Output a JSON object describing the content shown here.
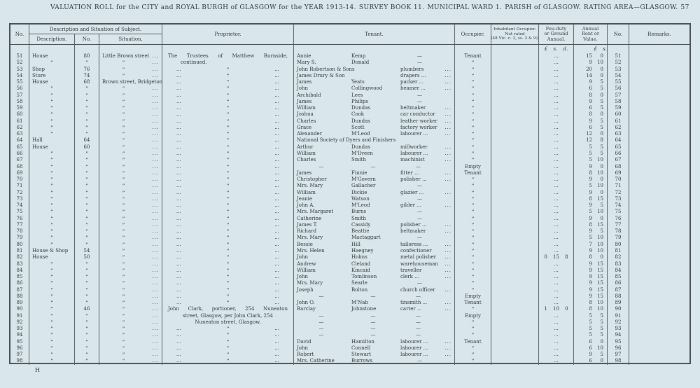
{
  "colors": {
    "page_bg": "#d9e7ec",
    "ink": "#30363b",
    "rule_line": "#4a5056"
  },
  "page": {
    "title_segments": [
      "VALUATION ROLL for the CITY and ROYAL BURGH of GLASGOW for the YEAR 1913-14.",
      "SURVEY BOOK 11.",
      "MUNICIPAL WARD 1.",
      "PARISH of GLASGOW.",
      "RATING AREA—GLASGOW.",
      "57"
    ],
    "footer_mark": "H"
  },
  "table": {
    "headers": {
      "no": "No.",
      "group": "Description and Situation of Subject.",
      "description": "Description.",
      "num": "No.",
      "situation": "Situation.",
      "proprietor": "Proprietor.",
      "tenant": "Tenant.",
      "occupier": "Occupier.",
      "inhabitant_lines": [
        "Inhabitant Occupier.",
        "Not rated",
        "(48 Vic. c. 3, ss. 3 & 9)."
      ],
      "feu_lines": [
        "Feu-duty",
        "or Ground",
        "Annual."
      ],
      "rent_lines": [
        "Annual",
        "Rent or",
        "Value."
      ],
      "no2": "No.",
      "remarks": "Remarks."
    },
    "money_header": {
      "feu": "£ s. d.",
      "rent_pounds": "£",
      "rent_shillings": "s."
    },
    "rows": [
      {
        "n": "51",
        "d": "House",
        "dn": "80",
        "s": "Little Brown street",
        "sd": "...",
        "p": "The Trustees of Matthew Burnside,",
        "ps": "j",
        "t1": "Annie",
        "t2": "Kemp",
        "t3": "—",
        "t4": "",
        "o": "Tenant",
        "f": "...",
        "rl": "15",
        "rs": "0"
      },
      {
        "n": "52",
        "d": "”",
        "dn": "”",
        "s": "”",
        "sd": "...",
        "p": "continued.",
        "ps": "i",
        "t1": "Mary S.",
        "t2": "Donald",
        "t3": "—",
        "t4": "",
        "o": "”",
        "f": "...",
        "rl": "9",
        "rs": "10"
      },
      {
        "n": "53",
        "d": "Shop",
        "dn": "76",
        "s": "”",
        "sd": "...",
        "p": "~",
        "ps": "",
        "t1": "John Robertson & Sons",
        "t2": "",
        "t3": "plumbers",
        "t4": "...",
        "o": "”",
        "f": "...",
        "rl": "20",
        "rs": "0"
      },
      {
        "n": "54",
        "d": "Store",
        "dn": "74",
        "s": "”",
        "sd": "...",
        "p": "~",
        "ps": "",
        "t1": "James Drury & Son",
        "t2": "",
        "t3": "drapers ...",
        "t4": "...",
        "o": "”",
        "f": "...",
        "rl": "14",
        "rs": "0"
      },
      {
        "n": "55",
        "d": "House",
        "dn": "68",
        "s": "Brown street, Bridgeton",
        "sd": "",
        "p": "~",
        "ps": "",
        "t1": "James",
        "t2": "Yeats",
        "t3": "packer ...",
        "t4": "...",
        "o": "”",
        "f": "...",
        "rl": "9",
        "rs": "5"
      },
      {
        "n": "56",
        "d": "”",
        "dn": "”",
        "s": "”",
        "sd": "...",
        "p": "~",
        "ps": "",
        "t1": "John",
        "t2": "Collingwood",
        "t3": "beamer ...",
        "t4": "...",
        "o": "”",
        "f": "...",
        "rl": "6",
        "rs": "5"
      },
      {
        "n": "57",
        "d": "”",
        "dn": "”",
        "s": "”",
        "sd": "...",
        "p": "~",
        "ps": "",
        "t1": "Archibald",
        "t2": "Lees",
        "t3": "—",
        "t4": "",
        "o": "”",
        "f": "...",
        "rl": "8",
        "rs": "0"
      },
      {
        "n": "58",
        "d": "”",
        "dn": "”",
        "s": "”",
        "sd": "...",
        "p": "~",
        "ps": "",
        "t1": "James",
        "t2": "Philips",
        "t3": "—",
        "t4": "",
        "o": "”",
        "f": "...",
        "rl": "9",
        "rs": "5"
      },
      {
        "n": "59",
        "d": "”",
        "dn": "”",
        "s": "”",
        "sd": "...",
        "p": "~",
        "ps": "",
        "t1": "William",
        "t2": "Dundas",
        "t3": "beltmaker",
        "t4": "...",
        "o": "”",
        "f": "...",
        "rl": "6",
        "rs": "5"
      },
      {
        "n": "60",
        "d": "”",
        "dn": "”",
        "s": "”",
        "sd": "...",
        "p": "~",
        "ps": "",
        "t1": "Joshua",
        "t2": "Cook",
        "t3": "car conductor",
        "t4": "...",
        "o": "”",
        "f": "...",
        "rl": "8",
        "rs": "0"
      },
      {
        "n": "61",
        "d": "”",
        "dn": "”",
        "s": "”",
        "sd": "...",
        "p": "~",
        "ps": "",
        "t1": "Charles",
        "t2": "Dundas",
        "t3": "leather worker",
        "t4": "...",
        "o": "”",
        "f": "...",
        "rl": "9",
        "rs": "5"
      },
      {
        "n": "62",
        "d": "”",
        "dn": "”",
        "s": "”",
        "sd": "...",
        "p": "~",
        "ps": "",
        "t1": "Grace",
        "t2": "Scott",
        "t3": "factory worker",
        "t4": "...",
        "o": "”",
        "f": "...",
        "rl": "6",
        "rs": "5"
      },
      {
        "n": "63",
        "d": "”",
        "dn": "”",
        "s": "”",
        "sd": "...",
        "p": "~",
        "ps": "",
        "t1": "Alexander",
        "t2": "M'Leod",
        "t3": "labourer ...",
        "t4": "...",
        "o": "”",
        "f": "...",
        "rl": "12",
        "rs": "0"
      },
      {
        "n": "64",
        "d": "Hall",
        "dn": "64",
        "s": "”",
        "sd": "...",
        "p": "~",
        "ps": "",
        "t1": "National Society of Dyers and Finishers",
        "t2": "",
        "t3": "",
        "t4": "",
        "o": "”",
        "f": "...",
        "rl": "12",
        "rs": "8"
      },
      {
        "n": "65",
        "d": "House",
        "dn": "60",
        "s": "”",
        "sd": "...",
        "p": "~",
        "ps": "",
        "t1": "Arthur",
        "t2": "Dundas",
        "t3": "millworker",
        "t4": "...",
        "o": "”",
        "f": "...",
        "rl": "5",
        "rs": "5"
      },
      {
        "n": "66",
        "d": "”",
        "dn": "”",
        "s": "”",
        "sd": "...",
        "p": "~",
        "ps": "",
        "t1": "William",
        "t2": "M'Ilveen",
        "t3": "labourer ...",
        "t4": "...",
        "o": "”",
        "f": "...",
        "rl": "5",
        "rs": "5"
      },
      {
        "n": "67",
        "d": "”",
        "dn": "”",
        "s": "”",
        "sd": "...",
        "p": "~",
        "ps": "",
        "t1": "Charles",
        "t2": "Smith",
        "t3": "machinist",
        "t4": "...",
        "o": "”",
        "f": "...",
        "rl": "5",
        "rs": "10"
      },
      {
        "n": "68",
        "d": "”",
        "dn": "”",
        "s": "”",
        "sd": "...",
        "p": "~",
        "ps": "",
        "t1": "—",
        "t2": "—",
        "t3": "—",
        "t4": "",
        "o": "Empty",
        "f": "...",
        "rl": "9",
        "rs": "0"
      },
      {
        "n": "69",
        "d": "”",
        "dn": "”",
        "s": "”",
        "sd": "...",
        "p": "~",
        "ps": "",
        "t1": "James",
        "t2": "Finnie",
        "t3": "fitter ...",
        "t4": "...",
        "o": "Tenant",
        "f": "...",
        "rl": "8",
        "rs": "10"
      },
      {
        "n": "70",
        "d": "”",
        "dn": "”",
        "s": "”",
        "sd": "...",
        "p": "~",
        "ps": "",
        "t1": "Christopher",
        "t2": "M'Govern",
        "t3": "polisher ...",
        "t4": "...",
        "o": "”",
        "f": "...",
        "rl": "9",
        "rs": "0"
      },
      {
        "n": "71",
        "d": "”",
        "dn": "”",
        "s": "”",
        "sd": "...",
        "p": "~",
        "ps": "",
        "t1": "Mrs. Mary",
        "t2": "Gallacher",
        "t3": "—",
        "t4": "",
        "o": "”",
        "f": "...",
        "rl": "5",
        "rs": "10"
      },
      {
        "n": "72",
        "d": "”",
        "dn": "”",
        "s": "”",
        "sd": "...",
        "p": "~",
        "ps": "",
        "t1": "William",
        "t2": "Dickie",
        "t3": "glazier ...",
        "t4": "...",
        "o": "”",
        "f": "...",
        "rl": "9",
        "rs": "0"
      },
      {
        "n": "73",
        "d": "”",
        "dn": "”",
        "s": "”",
        "sd": "...",
        "p": "~",
        "ps": "",
        "t1": "Jeanie",
        "t2": "Watson",
        "t3": "—",
        "t4": "",
        "o": "”",
        "f": "...",
        "rl": "8",
        "rs": "15"
      },
      {
        "n": "74",
        "d": "”",
        "dn": "”",
        "s": "”",
        "sd": "...",
        "p": "~",
        "ps": "",
        "t1": "John A.",
        "t2": "M'Leod",
        "t3": "gilder ...",
        "t4": "...",
        "o": "”",
        "f": "...",
        "rl": "9",
        "rs": "5"
      },
      {
        "n": "75",
        "d": "”",
        "dn": "”",
        "s": "”",
        "sd": "...",
        "p": "~",
        "ps": "",
        "t1": "Mrs. Margaret",
        "t2": "Burns",
        "t3": "—",
        "t4": "",
        "o": "”",
        "f": "...",
        "rl": "5",
        "rs": "10"
      },
      {
        "n": "76",
        "d": "”",
        "dn": "”",
        "s": "”",
        "sd": "...",
        "p": "~",
        "ps": "",
        "t1": "Catherine",
        "t2": "Smith",
        "t3": "—",
        "t4": "",
        "o": "”",
        "f": "...",
        "rl": "9",
        "rs": "0"
      },
      {
        "n": "77",
        "d": "”",
        "dn": "”",
        "s": "”",
        "sd": "...",
        "p": "~",
        "ps": "",
        "t1": "James T.",
        "t2": "Cassidy",
        "t3": "polisher ...",
        "t4": "...",
        "o": "”",
        "f": "...",
        "rl": "8",
        "rs": "15"
      },
      {
        "n": "78",
        "d": "”",
        "dn": "”",
        "s": "”",
        "sd": "...",
        "p": "~",
        "ps": "",
        "t1": "Richard",
        "t2": "Beattie",
        "t3": "beltmaker",
        "t4": "...",
        "o": "”",
        "f": "...",
        "rl": "9",
        "rs": "5"
      },
      {
        "n": "79",
        "d": "”",
        "dn": "”",
        "s": "”",
        "sd": "...",
        "p": "~",
        "ps": "",
        "t1": "Mrs. Mary",
        "t2": "Mactaggart",
        "t3": "—",
        "t4": "",
        "o": "”",
        "f": "...",
        "rl": "5",
        "rs": "10"
      },
      {
        "n": "80",
        "d": "”",
        "dn": "”",
        "s": "”",
        "sd": "...",
        "p": "~",
        "ps": "",
        "t1": "Bessie",
        "t2": "Hill",
        "t3": "tailoress ...",
        "t4": "...",
        "o": "”",
        "f": "...",
        "rl": "7",
        "rs": "10"
      },
      {
        "n": "81",
        "d": "House & Shop",
        "dn": "54",
        "s": "”",
        "sd": "...",
        "p": "~",
        "ps": "",
        "t1": "Mrs. Helen",
        "t2": "Haegney",
        "t3": "confectioner",
        "t4": "...",
        "o": "”",
        "f": "...",
        "rl": "9",
        "rs": "10"
      },
      {
        "n": "82",
        "d": "House",
        "dn": "50",
        "s": "”",
        "sd": "...",
        "p": "~",
        "ps": "",
        "t1": "John",
        "t2": "Holms",
        "t3": "metal polisher",
        "t4": "...",
        "o": "”",
        "f": "0 15 8",
        "rl": "8",
        "rs": "0"
      },
      {
        "n": "83",
        "d": "”",
        "dn": "”",
        "s": "”",
        "sd": "...",
        "p": "~",
        "ps": "",
        "t1": "Andrew",
        "t2": "Cleland",
        "t3": "warehouseman",
        "t4": "...",
        "o": "”",
        "f": "...",
        "rl": "9",
        "rs": "15"
      },
      {
        "n": "84",
        "d": "”",
        "dn": "”",
        "s": "”",
        "sd": "...",
        "p": "~",
        "ps": "",
        "t1": "William",
        "t2": "Kincaid",
        "t3": "traveller",
        "t4": "...",
        "o": "”",
        "f": "...",
        "rl": "9",
        "rs": "15"
      },
      {
        "n": "85",
        "d": "”",
        "dn": "”",
        "s": "”",
        "sd": "...",
        "p": "~",
        "ps": "",
        "t1": "John",
        "t2": "Tomlinson",
        "t3": "clerk ...",
        "t4": "...",
        "o": "”",
        "f": "...",
        "rl": "9",
        "rs": "15"
      },
      {
        "n": "86",
        "d": "”",
        "dn": "”",
        "s": "”",
        "sd": "...",
        "p": "~",
        "ps": "",
        "t1": "Mrs. Mary",
        "t2": "Searle",
        "t3": "—",
        "t4": "",
        "o": "”",
        "f": "...",
        "rl": "9",
        "rs": "15"
      },
      {
        "n": "87",
        "d": "”",
        "dn": "”",
        "s": "”",
        "sd": "...",
        "p": "~",
        "ps": "",
        "t1": "Joseph",
        "t2": "Bolton",
        "t3": "church officer",
        "t4": "...",
        "o": "”",
        "f": "...",
        "rl": "9",
        "rs": "15"
      },
      {
        "n": "88",
        "d": "”",
        "dn": "”",
        "s": "”",
        "sd": "...",
        "p": "~",
        "ps": "",
        "t1": "—",
        "t2": "—",
        "t3": "—",
        "t4": "",
        "o": "Empty",
        "f": "...",
        "rl": "9",
        "rs": "15"
      },
      {
        "n": "89",
        "d": "”",
        "dn": "”",
        "s": "”",
        "sd": "...",
        "p": "~",
        "ps": "",
        "t1": "John O.",
        "t2": "M'Nab",
        "t3": "tinsmith ...",
        "t4": "...",
        "o": "Tenant",
        "f": "...",
        "rl": "8",
        "rs": "10"
      },
      {
        "n": "90",
        "d": "”",
        "dn": "46",
        "s": "”",
        "sd": "...",
        "p": "John Clark, portioner, 254 Nuneaton",
        "ps": "j",
        "t1": "Barclay",
        "t2": "Johnstone",
        "t3": "carter ...",
        "t4": "...",
        "o": "”",
        "f": "1 10 0",
        "rl": "8",
        "rs": "10"
      },
      {
        "n": "91",
        "d": "”",
        "dn": "”",
        "s": "”",
        "sd": "...",
        "p": "street, Glasgow, per John Clark, 254",
        "ps": "c",
        "t1": "—",
        "t2": "—",
        "t3": "—",
        "t4": "",
        "o": "Empty",
        "f": "...",
        "rl": "5",
        "rs": "5"
      },
      {
        "n": "92",
        "d": "”",
        "dn": "”",
        "s": "”",
        "sd": "...",
        "p": "Nuneaton street, Glasgow.",
        "ps": "c",
        "t1": "—",
        "t2": "—",
        "t3": "—",
        "t4": "",
        "o": "”",
        "f": "...",
        "rl": "5",
        "rs": "5"
      },
      {
        "n": "93",
        "d": "”",
        "dn": "”",
        "s": "”",
        "sd": "...",
        "p": "~",
        "ps": "",
        "t1": "—",
        "t2": "—",
        "t3": "—",
        "t4": "",
        "o": "”",
        "f": "...",
        "rl": "5",
        "rs": "5"
      },
      {
        "n": "94",
        "d": "”",
        "dn": "”",
        "s": "”",
        "sd": "...",
        "p": "~",
        "ps": "",
        "t1": "—",
        "t2": "—",
        "t3": "—",
        "t4": "",
        "o": "”",
        "f": "...",
        "rl": "5",
        "rs": "5"
      },
      {
        "n": "95",
        "d": "”",
        "dn": "”",
        "s": "”",
        "sd": "...",
        "p": "~",
        "ps": "",
        "t1": "David",
        "t2": "Hamilton",
        "t3": "labourer ...",
        "t4": "...",
        "o": "Tenant",
        "f": "...",
        "rl": "6",
        "rs": "0"
      },
      {
        "n": "96",
        "d": "”",
        "dn": "”",
        "s": "”",
        "sd": "...",
        "p": "~",
        "ps": "",
        "t1": "John",
        "t2": "Connell",
        "t3": "labourer ...",
        "t4": "...",
        "o": "”",
        "f": "...",
        "rl": "6",
        "rs": "10"
      },
      {
        "n": "97",
        "d": "”",
        "dn": "”",
        "s": "”",
        "sd": "...",
        "p": "~",
        "ps": "",
        "t1": "Robert",
        "t2": "Stewart",
        "t3": "labourer ...",
        "t4": "...",
        "o": "”",
        "f": "...",
        "rl": "9",
        "rs": "5"
      },
      {
        "n": "98",
        "d": "”",
        "dn": "”",
        "s": "”",
        "sd": "...",
        "p": "~",
        "ps": "",
        "t1": "Mrs. Catherine",
        "t2": "Burrows",
        "t3": "—",
        "t4": "",
        "o": "”",
        "f": "...",
        "rl": "6",
        "rs": "0"
      }
    ]
  }
}
